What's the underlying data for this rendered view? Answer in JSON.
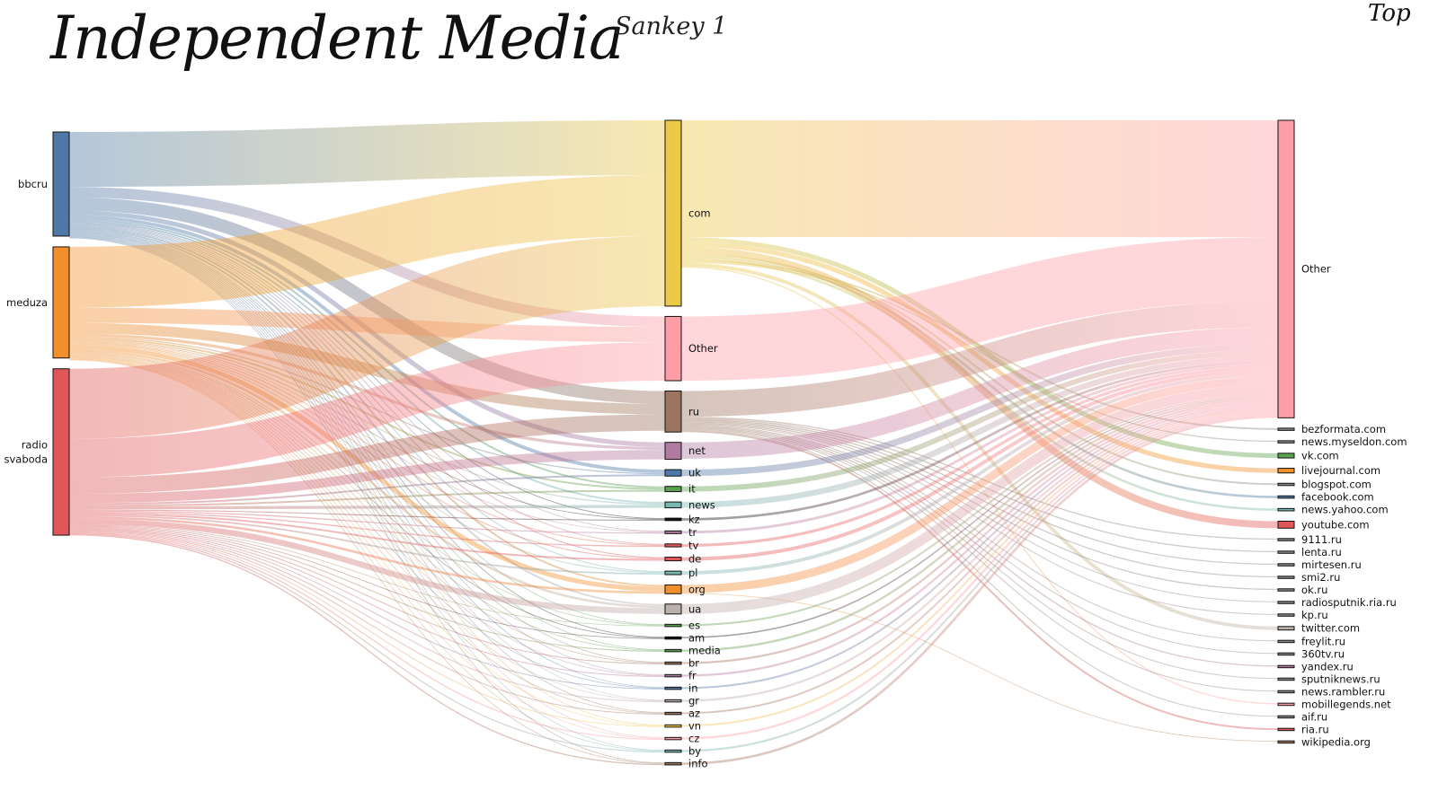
{
  "header": {
    "title": "Independent Media",
    "subtitle": "Sankey 1",
    "corner_label": "Top"
  },
  "colors": {
    "bbcru": "#4e79a7",
    "meduza": "#f28e2b",
    "radio_svaboda": "#e15759",
    "com": "#edc948",
    "Other": "#ff9da7",
    "ru": "#9c755f",
    "net": "#b07aa1",
    "uk": "#4e79a7",
    "it": "#59a14f",
    "news": "#76b7b2",
    "kz": "#111111",
    "tr": "#b07aa1",
    "tv": "#e15759",
    "de": "#e15759",
    "pl": "#76b7b2",
    "org": "#f28e2b",
    "ua": "#bab0ac",
    "es": "#59a14f",
    "am": "#111111",
    "media": "#59a14f",
    "br": "#9c755f",
    "fr": "#b07aa1",
    "in": "#4e79a7",
    "gr": "#bab0ac",
    "az": "#9c755f",
    "vn": "#edc948",
    "cz": "#ff9da7",
    "by": "#76b7b2",
    "info": "#9c755f",
    "vk.com": "#59a14f",
    "livejournal.com": "#f28e2b",
    "facebook.com": "#4e79a7",
    "news.yahoo.com": "#76b7b2",
    "youtube.com": "#e15759",
    "twitter.com": "#bab0ac",
    "yandex.ru": "#b07aa1",
    "mobillegends.net": "#ff9da7",
    "ria.ru": "#e15759",
    "wikipedia.org": "#9c755f"
  },
  "chart_data": {
    "type": "sankey",
    "columns": [
      [
        "bbcru",
        "meduza",
        "radio svaboda"
      ],
      [
        "com",
        "Other",
        "ru",
        "net",
        "uk",
        "it",
        "news",
        "kz",
        "tr",
        "tv",
        "de",
        "pl",
        "org",
        "ua",
        "es",
        "am",
        "media",
        "br",
        "fr",
        "in",
        "gr",
        "az",
        "vn",
        "cz",
        "by",
        "info"
      ],
      [
        "Other",
        "bezformata.com",
        "news.myseldon.com",
        "vk.com",
        "livejournal.com",
        "blogspot.com",
        "facebook.com",
        "news.yahoo.com",
        "youtube.com",
        "9111.ru",
        "lenta.ru",
        "mirtesen.ru",
        "smi2.ru",
        "ok.ru",
        "radiosputnik.ria.ru",
        "kp.ru",
        "twitter.com",
        "freylit.ru",
        "360tv.ru",
        "yandex.ru",
        "sputniknews.ru",
        "news.rambler.ru",
        "mobillegends.net",
        "aif.ru",
        "ria.ru",
        "wikipedia.org"
      ]
    ],
    "links": [
      {
        "source": "bbcru",
        "target": "com",
        "value": 47
      },
      {
        "source": "bbcru",
        "target": "Other",
        "value": 9
      },
      {
        "source": "bbcru",
        "target": "ru",
        "value": 11
      },
      {
        "source": "bbcru",
        "target": "net",
        "value": 4
      },
      {
        "source": "bbcru",
        "target": "uk",
        "value": 3
      },
      {
        "source": "bbcru",
        "target": "it",
        "value": 1.5
      },
      {
        "source": "bbcru",
        "target": "news",
        "value": 1.5
      },
      {
        "source": "bbcru",
        "target": "kz",
        "value": 0.7
      },
      {
        "source": "bbcru",
        "target": "tr",
        "value": 0.7
      },
      {
        "source": "bbcru",
        "target": "tv",
        "value": 0.7
      },
      {
        "source": "bbcru",
        "target": "de",
        "value": 0.8
      },
      {
        "source": "bbcru",
        "target": "pl",
        "value": 0.8
      },
      {
        "source": "bbcru",
        "target": "org",
        "value": 1.5
      },
      {
        "source": "bbcru",
        "target": "ua",
        "value": 1.5
      },
      {
        "source": "bbcru",
        "target": "es",
        "value": 0.5
      },
      {
        "source": "bbcru",
        "target": "am",
        "value": 0.4
      },
      {
        "source": "bbcru",
        "target": "media",
        "value": 0.5
      },
      {
        "source": "bbcru",
        "target": "br",
        "value": 0.5
      },
      {
        "source": "bbcru",
        "target": "fr",
        "value": 0.5
      },
      {
        "source": "bbcru",
        "target": "in",
        "value": 0.5
      },
      {
        "source": "bbcru",
        "target": "gr",
        "value": 0.4
      },
      {
        "source": "bbcru",
        "target": "az",
        "value": 0.4
      },
      {
        "source": "bbcru",
        "target": "vn",
        "value": 0.4
      },
      {
        "source": "bbcru",
        "target": "cz",
        "value": 0.4
      },
      {
        "source": "bbcru",
        "target": "by",
        "value": 0.4
      },
      {
        "source": "bbcru",
        "target": "info",
        "value": 0.5
      },
      {
        "source": "meduza",
        "target": "com",
        "value": 52
      },
      {
        "source": "meduza",
        "target": "Other",
        "value": 13
      },
      {
        "source": "meduza",
        "target": "ru",
        "value": 9
      },
      {
        "source": "meduza",
        "target": "net",
        "value": 2.5
      },
      {
        "source": "meduza",
        "target": "uk",
        "value": 1
      },
      {
        "source": "meduza",
        "target": "it",
        "value": 1.5
      },
      {
        "source": "meduza",
        "target": "news",
        "value": 1
      },
      {
        "source": "meduza",
        "target": "kz",
        "value": 0.6
      },
      {
        "source": "meduza",
        "target": "tr",
        "value": 0.6
      },
      {
        "source": "meduza",
        "target": "tv",
        "value": 0.8
      },
      {
        "source": "meduza",
        "target": "de",
        "value": 0.8
      },
      {
        "source": "meduza",
        "target": "pl",
        "value": 0.8
      },
      {
        "source": "meduza",
        "target": "org",
        "value": 4
      },
      {
        "source": "meduza",
        "target": "ua",
        "value": 2
      },
      {
        "source": "meduza",
        "target": "es",
        "value": 0.5
      },
      {
        "source": "meduza",
        "target": "am",
        "value": 0.4
      },
      {
        "source": "meduza",
        "target": "media",
        "value": 0.6
      },
      {
        "source": "meduza",
        "target": "br",
        "value": 0.5
      },
      {
        "source": "meduza",
        "target": "fr",
        "value": 0.5
      },
      {
        "source": "meduza",
        "target": "in",
        "value": 0.4
      },
      {
        "source": "meduza",
        "target": "gr",
        "value": 0.5
      },
      {
        "source": "meduza",
        "target": "az",
        "value": 0.4
      },
      {
        "source": "meduza",
        "target": "vn",
        "value": 0.4
      },
      {
        "source": "meduza",
        "target": "cz",
        "value": 0.4
      },
      {
        "source": "meduza",
        "target": "by",
        "value": 0.4
      },
      {
        "source": "meduza",
        "target": "info",
        "value": 0.5
      },
      {
        "source": "radio svaboda",
        "target": "com",
        "value": 60
      },
      {
        "source": "radio svaboda",
        "target": "Other",
        "value": 33
      },
      {
        "source": "radio svaboda",
        "target": "ru",
        "value": 14
      },
      {
        "source": "radio svaboda",
        "target": "net",
        "value": 8
      },
      {
        "source": "radio svaboda",
        "target": "uk",
        "value": 1.5
      },
      {
        "source": "radio svaboda",
        "target": "it",
        "value": 1.5
      },
      {
        "source": "radio svaboda",
        "target": "news",
        "value": 2.5
      },
      {
        "source": "radio svaboda",
        "target": "kz",
        "value": 0.8
      },
      {
        "source": "radio svaboda",
        "target": "tr",
        "value": 1
      },
      {
        "source": "radio svaboda",
        "target": "tv",
        "value": 1
      },
      {
        "source": "radio svaboda",
        "target": "de",
        "value": 1.5
      },
      {
        "source": "radio svaboda",
        "target": "pl",
        "value": 1.4
      },
      {
        "source": "radio svaboda",
        "target": "org",
        "value": 2
      },
      {
        "source": "radio svaboda",
        "target": "ua",
        "value": 5
      },
      {
        "source": "radio svaboda",
        "target": "es",
        "value": 0.6
      },
      {
        "source": "radio svaboda",
        "target": "am",
        "value": 0.4
      },
      {
        "source": "radio svaboda",
        "target": "media",
        "value": 0.8
      },
      {
        "source": "radio svaboda",
        "target": "br",
        "value": 0.8
      },
      {
        "source": "radio svaboda",
        "target": "fr",
        "value": 0.8
      },
      {
        "source": "radio svaboda",
        "target": "in",
        "value": 0.7
      },
      {
        "source": "radio svaboda",
        "target": "gr",
        "value": 0.9
      },
      {
        "source": "radio svaboda",
        "target": "az",
        "value": 0.7
      },
      {
        "source": "radio svaboda",
        "target": "vn",
        "value": 0.7
      },
      {
        "source": "radio svaboda",
        "target": "cz",
        "value": 0.9
      },
      {
        "source": "radio svaboda",
        "target": "by",
        "value": 0.9
      },
      {
        "source": "radio svaboda",
        "target": "info",
        "value": 1
      },
      {
        "source": "com",
        "target": "Other",
        "value": 100
      },
      {
        "source": "com",
        "target": "vk.com",
        "value": 4
      },
      {
        "source": "com",
        "target": "livejournal.com",
        "value": 4
      },
      {
        "source": "com",
        "target": "youtube.com",
        "value": 6
      },
      {
        "source": "com",
        "target": "blogspot.com",
        "value": 1.5
      },
      {
        "source": "com",
        "target": "facebook.com",
        "value": 2
      },
      {
        "source": "com",
        "target": "news.yahoo.com",
        "value": 2
      },
      {
        "source": "com",
        "target": "bezformata.com",
        "value": 1.5
      },
      {
        "source": "com",
        "target": "news.myseldon.com",
        "value": 1
      },
      {
        "source": "com",
        "target": "twitter.com",
        "value": 3
      },
      {
        "source": "com",
        "target": "mobillegends.net",
        "value": 1
      },
      {
        "source": "Other",
        "target": "Other",
        "value": 55
      },
      {
        "source": "ru",
        "target": "Other",
        "value": 22
      },
      {
        "source": "ru",
        "target": "9111.ru",
        "value": 1
      },
      {
        "source": "ru",
        "target": "lenta.ru",
        "value": 1
      },
      {
        "source": "ru",
        "target": "mirtesen.ru",
        "value": 1
      },
      {
        "source": "ru",
        "target": "smi2.ru",
        "value": 1
      },
      {
        "source": "ru",
        "target": "ok.ru",
        "value": 1
      },
      {
        "source": "ru",
        "target": "radiosputnik.ria.ru",
        "value": 0.8
      },
      {
        "source": "ru",
        "target": "kp.ru",
        "value": 0.8
      },
      {
        "source": "ru",
        "target": "freylit.ru",
        "value": 0.8
      },
      {
        "source": "ru",
        "target": "360tv.ru",
        "value": 0.8
      },
      {
        "source": "ru",
        "target": "yandex.ru",
        "value": 1
      },
      {
        "source": "ru",
        "target": "sputniknews.ru",
        "value": 0.8
      },
      {
        "source": "ru",
        "target": "news.rambler.ru",
        "value": 0.8
      },
      {
        "source": "ru",
        "target": "aif.ru",
        "value": 0.8
      },
      {
        "source": "ru",
        "target": "ria.ru",
        "value": 1.5
      },
      {
        "source": "net",
        "target": "Other",
        "value": 14
      },
      {
        "source": "uk",
        "target": "Other",
        "value": 5.5
      },
      {
        "source": "it",
        "target": "Other",
        "value": 4.5
      },
      {
        "source": "news",
        "target": "Other",
        "value": 5
      },
      {
        "source": "kz",
        "target": "Other",
        "value": 2.1
      },
      {
        "source": "tr",
        "target": "Other",
        "value": 2.3
      },
      {
        "source": "tv",
        "target": "Other",
        "value": 2.5
      },
      {
        "source": "de",
        "target": "Other",
        "value": 3.1
      },
      {
        "source": "pl",
        "target": "Other",
        "value": 3
      },
      {
        "source": "org",
        "target": "Other",
        "value": 7
      },
      {
        "source": "org",
        "target": "wikipedia.org",
        "value": 0.5
      },
      {
        "source": "ua",
        "target": "Other",
        "value": 8.5
      },
      {
        "source": "es",
        "target": "Other",
        "value": 1.6
      },
      {
        "source": "am",
        "target": "Other",
        "value": 1.2
      },
      {
        "source": "media",
        "target": "Other",
        "value": 1.9
      },
      {
        "source": "br",
        "target": "Other",
        "value": 1.8
      },
      {
        "source": "fr",
        "target": "Other",
        "value": 1.8
      },
      {
        "source": "in",
        "target": "Other",
        "value": 1.6
      },
      {
        "source": "gr",
        "target": "Other",
        "value": 1.8
      },
      {
        "source": "az",
        "target": "Other",
        "value": 1.5
      },
      {
        "source": "vn",
        "target": "Other",
        "value": 1.5
      },
      {
        "source": "cz",
        "target": "Other",
        "value": 1.7
      },
      {
        "source": "by",
        "target": "Other",
        "value": 1.7
      },
      {
        "source": "info",
        "target": "Other",
        "value": 2
      }
    ]
  }
}
